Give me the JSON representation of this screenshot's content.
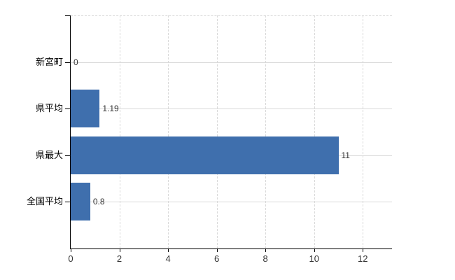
{
  "chart_data": {
    "type": "bar",
    "orientation": "horizontal",
    "categories": [
      "新宮町",
      "県平均",
      "県最大",
      "全国平均"
    ],
    "values": [
      0,
      1.19,
      11,
      0.8
    ],
    "value_labels": [
      "0",
      "1.19",
      "11",
      "0.8"
    ],
    "x_ticks": [
      0,
      2,
      4,
      6,
      8,
      10,
      12
    ],
    "xlim": [
      0,
      13.2
    ],
    "grid": true,
    "legend": false,
    "bar_color": "#3f6fad",
    "grid_color": "#d9d9d9",
    "axis_color": "#000000",
    "label_color": "#333333"
  }
}
